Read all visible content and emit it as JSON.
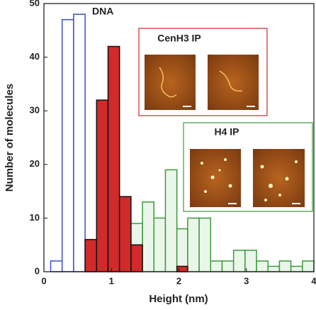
{
  "chart_data": {
    "type": "histogram",
    "x_label": "Height (nm)",
    "y_label": "Number of molecules",
    "bins": [
      0.1,
      0.27,
      0.44,
      0.61,
      0.78,
      0.95,
      1.12,
      1.29,
      1.46,
      1.63,
      1.8,
      1.97,
      2.13,
      2.3,
      2.47,
      2.64,
      2.81,
      2.98,
      3.15,
      3.32,
      3.49,
      3.66,
      3.83,
      4.0
    ],
    "series": [
      {
        "name": "H4 IP",
        "color": "#3c9a3c",
        "values": [
          0,
          0,
          0,
          0,
          0,
          1,
          2,
          9,
          13,
          10,
          19,
          8,
          10,
          10,
          2,
          2,
          4,
          4,
          2,
          1,
          2,
          1,
          2
        ]
      },
      {
        "name": "DNA",
        "color": "#3b4fc4",
        "values": [
          2,
          47,
          48,
          2,
          0,
          0,
          0,
          0,
          0,
          0,
          0,
          0,
          0,
          0,
          0,
          0,
          0,
          0,
          0,
          0,
          0,
          0,
          0
        ]
      },
      {
        "name": "CenH3 IP",
        "color": "#d02a2a",
        "values": [
          0,
          0,
          0,
          6,
          32,
          42,
          14,
          5,
          0,
          0,
          0,
          1,
          0,
          0,
          0,
          0,
          0,
          0,
          0,
          0,
          0,
          0,
          0
        ]
      }
    ],
    "xlim": [
      0,
      4
    ],
    "xticks": [
      0,
      1,
      2,
      3,
      4
    ],
    "ylim": [
      0,
      50
    ],
    "yticks": [
      0,
      10,
      20,
      30,
      40,
      50
    ]
  }
}
